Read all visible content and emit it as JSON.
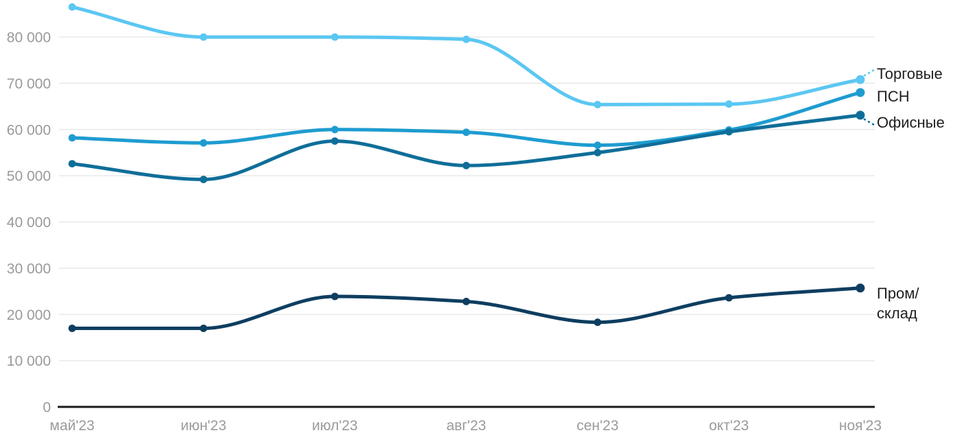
{
  "chart_data": {
    "type": "line",
    "title": "",
    "xlabel": "",
    "ylabel": "",
    "grid": true,
    "legend_position": "right-end-labels",
    "categories": [
      "май'23",
      "июн'23",
      "июл'23",
      "авг'23",
      "сен'23",
      "окт'23",
      "ноя'23"
    ],
    "yticks": [
      0,
      10000,
      20000,
      30000,
      40000,
      50000,
      60000,
      70000,
      80000
    ],
    "ytick_labels": [
      "0",
      "10 000",
      "20 000",
      "30 000",
      "40 000",
      "50 000",
      "60 000",
      "70 000",
      "80 000"
    ],
    "ylim": [
      0,
      88000
    ],
    "series": [
      {
        "name": "Торговые",
        "slug": "retail",
        "color": "#5BC7F2",
        "values": [
          86500,
          80000,
          80000,
          79500,
          65400,
          65500,
          70800
        ],
        "label_lines": [
          "Торговые"
        ]
      },
      {
        "name": "ПСН",
        "slug": "psn",
        "color": "#1E9CD0",
        "values": [
          58200,
          57100,
          60000,
          59400,
          56600,
          59900,
          68000
        ],
        "label_lines": [
          "ПСН"
        ]
      },
      {
        "name": "Офисные",
        "slug": "office",
        "color": "#0F6E99",
        "values": [
          52600,
          49200,
          57500,
          52200,
          55000,
          59500,
          63100
        ],
        "label_lines": [
          "Офисные"
        ]
      },
      {
        "name": "Пром/склад",
        "slug": "industrial-warehouse",
        "color": "#0E3E60",
        "values": [
          17000,
          17000,
          23900,
          22800,
          18300,
          23600,
          25700
        ],
        "label_lines": [
          "Пром/",
          "склад"
        ]
      }
    ]
  },
  "colors": {
    "background": "#FFFFFF",
    "grid": "#E8E8E8",
    "axis": "#1A1A1A",
    "tick_text": "#9A9A9A",
    "label_text": "#1F1F1F"
  }
}
